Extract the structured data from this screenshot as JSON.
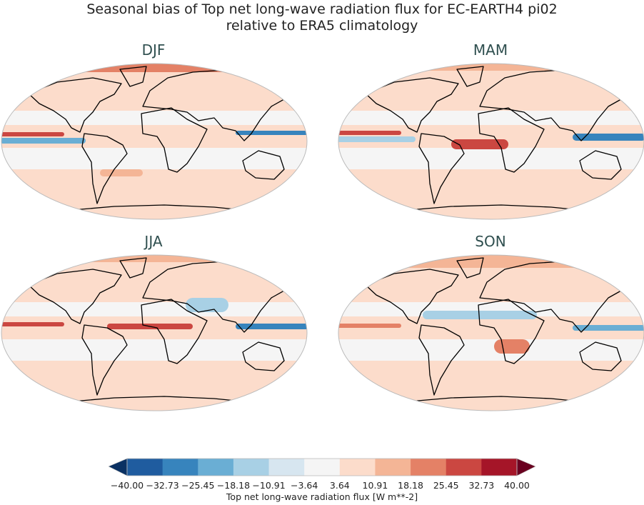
{
  "title_line1": "Seasonal bias of Top net long-wave radiation flux for EC-EARTH4 pi02",
  "title_line2": "relative to ERA5 climatology",
  "panels": [
    {
      "label": "DJF"
    },
    {
      "label": "MAM"
    },
    {
      "label": "JJA"
    },
    {
      "label": "SON"
    }
  ],
  "colorbar": {
    "label": "Top net long-wave radiation flux [W m**-2]",
    "ticks": [
      "−40.00",
      "−32.73",
      "−25.45",
      "−18.18",
      "−10.91",
      "−3.64",
      "3.64",
      "10.91",
      "18.18",
      "25.45",
      "32.73",
      "40.00"
    ],
    "levels": [
      -40.0,
      -32.73,
      -25.45,
      -18.18,
      -10.91,
      -3.64,
      3.64,
      10.91,
      18.18,
      25.45,
      32.73,
      40.0
    ],
    "under_color": "#0a3163",
    "over_color": "#6a0020",
    "colors": [
      "#1f5c9f",
      "#3784bd",
      "#6aaed4",
      "#a8d0e5",
      "#d7e6f0",
      "#f5f5f5",
      "#fcdccb",
      "#f4b596",
      "#e48166",
      "#cb4741",
      "#a51528"
    ]
  }
}
